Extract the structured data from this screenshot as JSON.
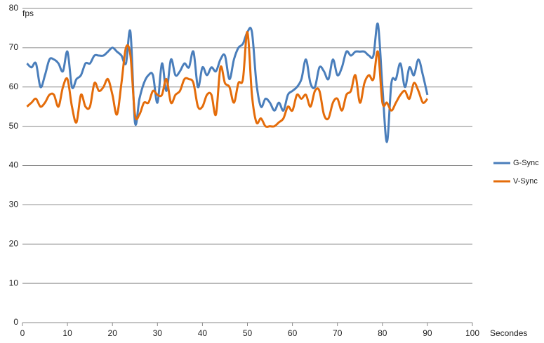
{
  "chart_data": {
    "type": "line",
    "y_label": "fps",
    "x_label": "Secondes",
    "x": [
      1,
      2,
      3,
      4,
      5,
      6,
      7,
      8,
      9,
      10,
      11,
      12,
      13,
      14,
      15,
      16,
      17,
      18,
      19,
      20,
      21,
      22,
      23,
      24,
      25,
      26,
      27,
      28,
      29,
      30,
      31,
      32,
      33,
      34,
      35,
      36,
      37,
      38,
      39,
      40,
      41,
      42,
      43,
      44,
      45,
      46,
      47,
      48,
      49,
      50,
      51,
      52,
      53,
      54,
      55,
      56,
      57,
      58,
      59,
      60,
      61,
      62,
      63,
      64,
      65,
      66,
      67,
      68,
      69,
      70,
      71,
      72,
      73,
      74,
      75,
      76,
      77,
      78,
      79,
      80,
      81,
      82,
      83,
      84,
      85,
      86,
      87,
      88,
      89,
      90
    ],
    "series": [
      {
        "name": "G-Sync",
        "color": "#4a7ebb",
        "values": [
          66,
          65,
          66,
          60,
          63,
          67,
          67,
          66,
          64,
          69,
          60,
          62,
          63,
          66,
          66,
          68,
          68,
          68,
          69,
          70,
          69,
          68,
          66,
          74,
          51,
          57,
          61,
          63,
          63,
          56,
          66,
          59,
          67,
          63,
          64,
          66,
          65,
          69,
          60,
          65,
          63,
          65,
          64,
          67,
          68,
          62,
          67,
          70,
          71,
          74,
          74,
          61,
          55,
          57,
          56,
          54,
          56,
          54,
          58,
          59,
          60,
          62,
          67,
          61,
          60,
          65,
          64,
          62,
          67,
          63,
          65,
          69,
          68,
          69,
          69,
          69,
          68,
          68,
          76,
          60,
          46,
          61,
          62,
          66,
          60,
          65,
          63,
          67,
          63,
          58
        ]
      },
      {
        "name": "V-Sync",
        "color": "#e46c0a",
        "values": [
          55,
          56,
          57,
          55,
          56,
          58,
          58,
          55,
          60,
          62,
          55,
          51,
          58,
          55,
          55,
          61,
          59,
          60,
          62,
          58,
          53,
          61,
          70,
          68,
          53,
          53,
          56,
          56,
          59,
          58,
          58,
          62,
          56,
          58,
          59,
          62,
          62,
          61,
          55,
          55,
          58,
          58,
          53,
          65,
          61,
          60,
          56,
          61,
          62,
          74,
          58,
          51,
          52,
          50,
          50,
          50,
          51,
          52,
          55,
          54,
          58,
          57,
          58,
          55,
          59,
          59,
          53,
          52,
          56,
          57,
          54,
          58,
          59,
          63,
          56,
          61,
          63,
          62,
          69,
          56,
          56,
          54,
          56,
          58,
          59,
          57,
          61,
          59,
          56,
          57
        ]
      }
    ],
    "xlim": [
      0,
      100
    ],
    "xticks": [
      0,
      10,
      20,
      30,
      40,
      50,
      60,
      70,
      80,
      90,
      100
    ],
    "ylim": [
      0,
      80
    ],
    "yticks": [
      0,
      10,
      20,
      30,
      40,
      50,
      60,
      70,
      80
    ],
    "grid": true,
    "legend": "right"
  }
}
